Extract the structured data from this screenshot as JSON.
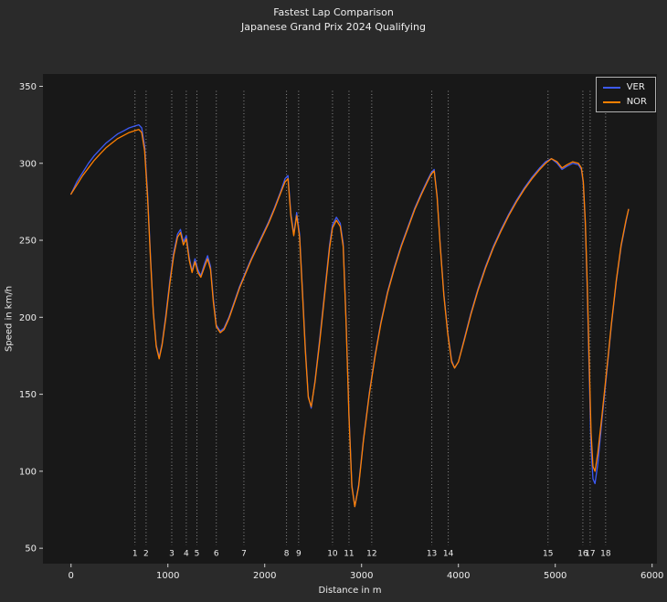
{
  "figure": {
    "title_line1": "Fastest Lap Comparison",
    "title_line2": "Japanese Grand Prix 2024 Qualifying",
    "bg_color": "#2a2a2a",
    "axes_bg_color": "#181818",
    "text_color": "#ededed",
    "tick_color": "#d0d0d0"
  },
  "chart_data": {
    "type": "line",
    "title": "Fastest Lap Comparison",
    "subtitle": "Japanese Grand Prix 2024 Qualifying",
    "xlabel": "Distance in m",
    "ylabel": "Speed in km/h",
    "xlim": [
      -290,
      6050
    ],
    "ylim": [
      40,
      358
    ],
    "xticks": [
      0,
      1000,
      2000,
      3000,
      4000,
      5000,
      6000
    ],
    "yticks": [
      50,
      100,
      150,
      200,
      250,
      300,
      350
    ],
    "grid": false,
    "legend_position": "upper right",
    "corner_line_color": "#8c8c8c",
    "corner_line_span": [
      52,
      347
    ],
    "corner_label_y": 45,
    "corners": [
      {
        "n": "1",
        "x": 660
      },
      {
        "n": "2",
        "x": 775
      },
      {
        "n": "3",
        "x": 1040
      },
      {
        "n": "4",
        "x": 1190
      },
      {
        "n": "5",
        "x": 1300
      },
      {
        "n": "6",
        "x": 1500
      },
      {
        "n": "7",
        "x": 1785
      },
      {
        "n": "8",
        "x": 2225
      },
      {
        "n": "9",
        "x": 2350
      },
      {
        "n": "10",
        "x": 2700
      },
      {
        "n": "11",
        "x": 2870
      },
      {
        "n": "12",
        "x": 3105
      },
      {
        "n": "13",
        "x": 3725
      },
      {
        "n": "14",
        "x": 3895
      },
      {
        "n": "15",
        "x": 4925
      },
      {
        "n": "16",
        "x": 5285
      },
      {
        "n": "17",
        "x": 5360
      },
      {
        "n": "18",
        "x": 5520
      }
    ],
    "x": [
      0,
      60,
      120,
      180,
      240,
      300,
      360,
      420,
      480,
      540,
      600,
      650,
      700,
      730,
      760,
      790,
      820,
      850,
      880,
      910,
      940,
      980,
      1020,
      1060,
      1100,
      1130,
      1160,
      1190,
      1220,
      1250,
      1280,
      1310,
      1340,
      1380,
      1410,
      1440,
      1470,
      1500,
      1540,
      1580,
      1630,
      1680,
      1740,
      1800,
      1860,
      1920,
      1980,
      2040,
      2100,
      2160,
      2210,
      2240,
      2270,
      2300,
      2330,
      2360,
      2390,
      2420,
      2450,
      2480,
      2520,
      2570,
      2620,
      2670,
      2700,
      2740,
      2780,
      2810,
      2840,
      2870,
      2900,
      2930,
      2970,
      3020,
      3080,
      3140,
      3200,
      3270,
      3340,
      3410,
      3480,
      3550,
      3620,
      3680,
      3720,
      3750,
      3780,
      3810,
      3850,
      3890,
      3930,
      3960,
      4000,
      4060,
      4130,
      4200,
      4280,
      4360,
      4440,
      4520,
      4600,
      4680,
      4760,
      4840,
      4900,
      4960,
      5020,
      5070,
      5120,
      5180,
      5240,
      5270,
      5290,
      5310,
      5330,
      5350,
      5370,
      5390,
      5410,
      5440,
      5480,
      5530,
      5580,
      5630,
      5680,
      5730,
      5757
    ],
    "series": [
      {
        "name": "VER",
        "color": "#3d5af5",
        "values": [
          280,
          288,
          294,
          300,
          305,
          309,
          313,
          316,
          319,
          321,
          323,
          324,
          325,
          323,
          311,
          281,
          240,
          204,
          182,
          174,
          183,
          202,
          224,
          242,
          254,
          257,
          249,
          253,
          239,
          230,
          238,
          231,
          227,
          235,
          240,
          233,
          212,
          195,
          191,
          193,
          200,
          209,
          220,
          229,
          238,
          246,
          254,
          262,
          271,
          281,
          290,
          292,
          268,
          254,
          268,
          254,
          217,
          180,
          149,
          141,
          159,
          187,
          217,
          247,
          260,
          265,
          261,
          248,
          198,
          138,
          91,
          77,
          91,
          121,
          151,
          176,
          197,
          217,
          233,
          247,
          259,
          271,
          281,
          289,
          294,
          296,
          279,
          249,
          215,
          190,
          172,
          167,
          171,
          186,
          203,
          218,
          233,
          246,
          257,
          267,
          276,
          284,
          291,
          297,
          301,
          303,
          300,
          296,
          298,
          300,
          299,
          296,
          287,
          260,
          218,
          165,
          115,
          95,
          92,
          105,
          132,
          163,
          195,
          223,
          246,
          262,
          270
        ]
      },
      {
        "name": "NOR",
        "color": "#ff8000",
        "values": [
          280,
          286,
          292,
          297,
          302,
          306,
          310,
          313,
          316,
          318,
          320,
          321,
          322,
          320,
          308,
          278,
          238,
          203,
          181,
          173,
          182,
          200,
          222,
          240,
          252,
          255,
          247,
          251,
          237,
          229,
          236,
          229,
          226,
          233,
          238,
          231,
          210,
          194,
          190,
          192,
          199,
          208,
          219,
          228,
          237,
          245,
          253,
          261,
          270,
          280,
          288,
          290,
          266,
          253,
          266,
          252,
          215,
          178,
          148,
          142,
          158,
          185,
          215,
          245,
          258,
          263,
          259,
          246,
          196,
          136,
          90,
          77,
          90,
          120,
          150,
          175,
          196,
          216,
          232,
          246,
          258,
          270,
          280,
          288,
          293,
          295,
          278,
          248,
          214,
          189,
          171,
          167,
          171,
          185,
          202,
          217,
          232,
          245,
          256,
          266,
          275,
          283,
          290,
          296,
          300,
          303,
          301,
          297,
          299,
          301,
          300,
          297,
          288,
          262,
          222,
          172,
          125,
          103,
          100,
          112,
          135,
          165,
          196,
          224,
          247,
          263,
          270
        ]
      }
    ]
  }
}
